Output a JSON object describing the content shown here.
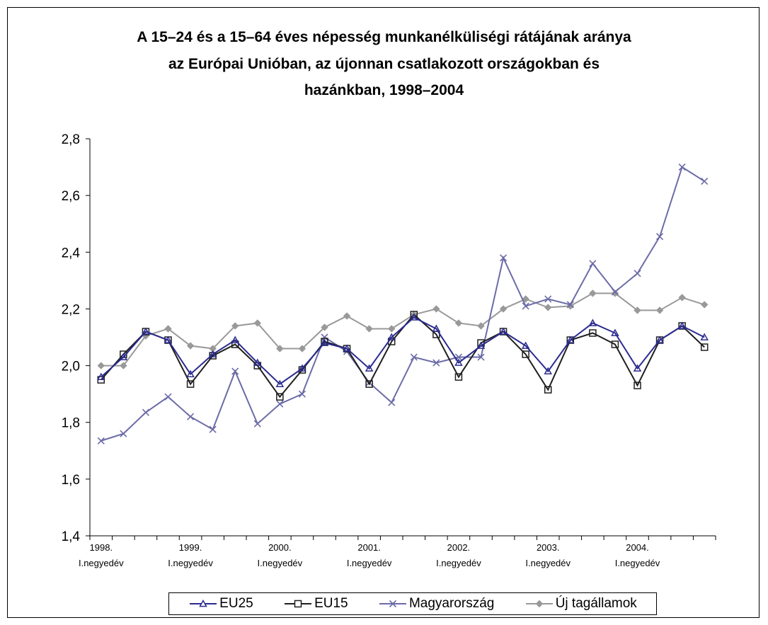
{
  "chart_data": {
    "type": "line",
    "title_lines": [
      "A 15–24 és a 15–64 éves népesség munkanélküliségi rátájának aránya",
      "az Európai Unióban, az újonnan csatlakozott országokban és",
      "hazánkban, 1998–2004"
    ],
    "ylim": [
      1.4,
      2.8
    ],
    "yticks": [
      "1,4",
      "1,6",
      "1,8",
      "2,0",
      "2,2",
      "2,4",
      "2,6",
      "2,8"
    ],
    "ytick_values": [
      1.4,
      1.6,
      1.8,
      2.0,
      2.2,
      2.4,
      2.6,
      2.8
    ],
    "x_count": 28,
    "x_major_labels": [
      {
        "index": 0,
        "year": "1998.",
        "quarter": "I.negyedév"
      },
      {
        "index": 4,
        "year": "1999.",
        "quarter": "I.negyedév"
      },
      {
        "index": 8,
        "year": "2000.",
        "quarter": "I.negyedév"
      },
      {
        "index": 12,
        "year": "2001.",
        "quarter": "I.negyedév"
      },
      {
        "index": 16,
        "year": "2002.",
        "quarter": "I.negyedév"
      },
      {
        "index": 20,
        "year": "2003.",
        "quarter": "I.negyedév"
      },
      {
        "index": 24,
        "year": "2004.",
        "quarter": "I.negyedév"
      }
    ],
    "series": [
      {
        "name": "EU25",
        "color": "#2b2b8f",
        "marker": "triangle",
        "values": [
          1.96,
          2.03,
          2.12,
          2.09,
          1.97,
          2.04,
          2.09,
          2.01,
          1.935,
          1.99,
          2.08,
          2.06,
          1.99,
          2.1,
          2.17,
          2.13,
          2.01,
          2.07,
          2.12,
          2.07,
          1.98,
          2.09,
          2.15,
          2.115,
          1.99,
          2.09,
          2.14,
          2.1
        ]
      },
      {
        "name": "EU15",
        "color": "#1f1f1f",
        "marker": "square",
        "values": [
          1.95,
          2.04,
          2.12,
          2.09,
          1.935,
          2.035,
          2.075,
          2.0,
          1.89,
          1.985,
          2.085,
          2.06,
          1.935,
          2.085,
          2.18,
          2.11,
          1.96,
          2.08,
          2.12,
          2.04,
          1.915,
          2.09,
          2.115,
          2.075,
          1.93,
          2.09,
          2.14,
          2.065
        ]
      },
      {
        "name": "Magyarország",
        "color": "#6b6ba8",
        "marker": "x",
        "values": [
          1.735,
          1.76,
          1.835,
          1.89,
          1.82,
          1.775,
          1.98,
          1.795,
          1.865,
          1.9,
          2.1,
          2.05,
          1.94,
          1.87,
          2.03,
          2.01,
          2.03,
          2.03,
          2.38,
          2.21,
          2.235,
          2.215,
          2.36,
          2.26,
          2.325,
          2.455,
          2.7,
          2.65
        ]
      },
      {
        "name": "Új tagállamok",
        "color": "#999999",
        "marker": "diamond",
        "values": [
          2.0,
          2.0,
          2.105,
          2.13,
          2.07,
          2.06,
          2.14,
          2.15,
          2.06,
          2.06,
          2.135,
          2.175,
          2.13,
          2.13,
          2.18,
          2.2,
          2.15,
          2.14,
          2.2,
          2.235,
          2.205,
          2.21,
          2.255,
          2.255,
          2.195,
          2.195,
          2.24,
          2.215
        ]
      }
    ],
    "legend_position": "bottom",
    "grid": false
  }
}
